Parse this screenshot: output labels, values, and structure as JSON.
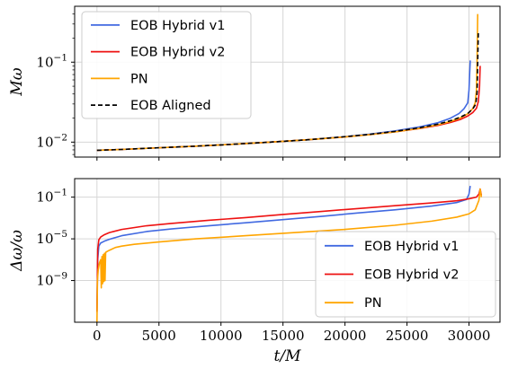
{
  "chart_data": [
    {
      "type": "line",
      "ylabel": "Mω",
      "yscale": "log",
      "ylim": [
        0.0065,
        0.5
      ],
      "xlim": [
        -1800,
        32500
      ],
      "x_ticks": [
        0,
        5000,
        10000,
        15000,
        20000,
        25000,
        30000
      ],
      "y_ticks": [
        {
          "value": 0.01,
          "label": "10",
          "exp": "−2"
        },
        {
          "value": 0.1,
          "label": "10",
          "exp": "−1"
        }
      ],
      "grid": true,
      "legend": "top-left",
      "series": [
        {
          "name": "EOB Hybrid v1",
          "color": "#4169e1",
          "dashed": false,
          "x": [
            0,
            2000,
            5000,
            8000,
            11000,
            14000,
            17000,
            20000,
            22000,
            24000,
            26000,
            27500,
            28500,
            29200,
            29600,
            29900,
            30000,
            30050,
            30100
          ],
          "y": [
            0.0079,
            0.0081,
            0.0085,
            0.0089,
            0.0094,
            0.01,
            0.0107,
            0.0117,
            0.0126,
            0.0138,
            0.0155,
            0.0175,
            0.0199,
            0.0228,
            0.0262,
            0.031,
            0.045,
            0.07,
            0.105
          ]
        },
        {
          "name": "EOB Hybrid v2",
          "color": "#ee1111",
          "dashed": false,
          "x": [
            0,
            2000,
            5000,
            8000,
            11000,
            14000,
            17000,
            20000,
            22000,
            24000,
            26000,
            27500,
            28500,
            29300,
            29900,
            30300,
            30600,
            30750,
            30850,
            30900
          ],
          "y": [
            0.0079,
            0.0081,
            0.0085,
            0.0089,
            0.0094,
            0.01,
            0.0107,
            0.0116,
            0.0124,
            0.0134,
            0.0148,
            0.0162,
            0.0176,
            0.0192,
            0.0212,
            0.0234,
            0.0265,
            0.032,
            0.05,
            0.09
          ]
        },
        {
          "name": "PN",
          "color": "#ffa500",
          "dashed": false,
          "x": [
            0,
            2000,
            5000,
            8000,
            11000,
            14000,
            17000,
            20000,
            22000,
            24000,
            26000,
            27500,
            28500,
            29300,
            29900,
            30300,
            30500,
            30600,
            30650,
            30700
          ],
          "y": [
            0.0079,
            0.0081,
            0.0085,
            0.0089,
            0.0094,
            0.01,
            0.0107,
            0.0116,
            0.0124,
            0.0134,
            0.0149,
            0.0165,
            0.0181,
            0.0201,
            0.0226,
            0.0262,
            0.031,
            0.045,
            0.1,
            0.4
          ]
        },
        {
          "name": "EOB Aligned",
          "color": "#000000",
          "dashed": true,
          "x": [
            0,
            2000,
            5000,
            8000,
            11000,
            14000,
            17000,
            20000,
            22000,
            24000,
            26000,
            27500,
            28500,
            29300,
            29900,
            30300,
            30550,
            30650,
            30700,
            30750
          ],
          "y": [
            0.0079,
            0.0081,
            0.0085,
            0.0089,
            0.0094,
            0.01,
            0.0107,
            0.0117,
            0.0125,
            0.0136,
            0.0151,
            0.0168,
            0.0185,
            0.0205,
            0.0228,
            0.026,
            0.03,
            0.042,
            0.1,
            0.23
          ]
        }
      ]
    },
    {
      "type": "line",
      "xlabel": "t/M",
      "ylabel": "Δω/ω",
      "yscale": "log",
      "ylim": [
        1e-13,
        6
      ],
      "xlim": [
        -1800,
        32500
      ],
      "x_ticks": [
        0,
        5000,
        10000,
        15000,
        20000,
        25000,
        30000
      ],
      "y_ticks": [
        {
          "value": 1e-09,
          "label": "10",
          "exp": "−9"
        },
        {
          "value": 1e-05,
          "label": "10",
          "exp": "−5"
        },
        {
          "value": 0.1,
          "label": "10",
          "exp": "−1"
        }
      ],
      "grid": true,
      "legend": "bottom-right",
      "series": [
        {
          "name": "EOB Hybrid v1",
          "color": "#4169e1",
          "x": [
            0,
            60,
            150,
            300,
            600,
            1000,
            2000,
            4000,
            6000,
            9000,
            12000,
            15000,
            18000,
            21000,
            24000,
            27000,
            29000,
            29800,
            30000,
            30100
          ],
          "y": [
            1e-12,
            1e-07,
            2e-06,
            4e-06,
            6e-06,
            9e-06,
            2e-05,
            5e-05,
            9e-05,
            0.00018,
            0.00035,
            0.0007,
            0.0014,
            0.003,
            0.006,
            0.014,
            0.03,
            0.06,
            0.2,
            1.2
          ]
        },
        {
          "name": "EOB Hybrid v2",
          "color": "#ee1111",
          "x": [
            0,
            60,
            150,
            300,
            600,
            1000,
            2000,
            4000,
            6000,
            9000,
            12000,
            15000,
            18000,
            21000,
            24000,
            27000,
            29000,
            30000,
            30600,
            30800,
            30900,
            31000
          ],
          "y": [
            1e-12,
            1e-06,
            8e-06,
            1.5e-05,
            2.5e-05,
            4e-05,
            8e-05,
            0.00018,
            0.0003,
            0.0006,
            0.0011,
            0.0022,
            0.0042,
            0.008,
            0.015,
            0.028,
            0.045,
            0.07,
            0.1,
            0.2,
            0.6,
            0.15
          ]
        },
        {
          "name": "PN",
          "color": "#ffa500",
          "x": [
            0,
            40,
            100,
            200,
            300,
            350,
            400,
            450,
            500,
            550,
            600,
            650,
            700,
            800,
            1000,
            1500,
            2000,
            3000,
            5000,
            8000,
            12000,
            16000,
            20000,
            24000,
            27000,
            29000,
            30000,
            30500,
            30800,
            30900,
            31000
          ],
          "y": [
            1e-13,
            1e-09,
            1e-08,
            5e-08,
            1e-07,
            2e-10,
            2e-07,
            5e-10,
            3e-07,
            8e-10,
            4e-07,
            1e-09,
            5e-07,
            6e-07,
            8e-07,
            1.5e-06,
            2e-06,
            3e-06,
            5e-06,
            1e-05,
            2e-05,
            4e-05,
            8e-05,
            0.0002,
            0.0005,
            0.0012,
            0.0025,
            0.006,
            0.05,
            0.6,
            0.1
          ]
        }
      ]
    }
  ]
}
